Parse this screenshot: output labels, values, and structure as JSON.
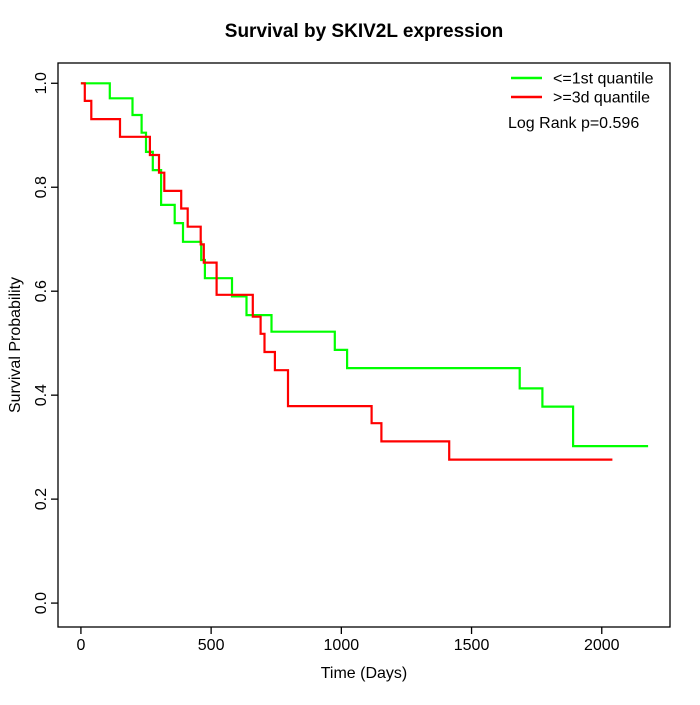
{
  "chart_data": {
    "type": "line",
    "subtype": "kaplan-meier-step",
    "title": "Survival by SKIV2L expression",
    "xlabel": "Time (Days)",
    "ylabel": "Survival Probability",
    "x_ticks": [
      0,
      500,
      1000,
      1500,
      2000
    ],
    "y_ticks": [
      "0.0",
      "0.2",
      "0.4",
      "0.6",
      "0.8",
      "1.0"
    ],
    "xlim": [
      -88,
      2262
    ],
    "ylim": [
      -0.046,
      1.039
    ],
    "grid": false,
    "legend_position": "top-right",
    "annotation": "Log Rank p=0.596",
    "series": [
      {
        "name": "le-1st-quantile",
        "label": "<=1st quantile",
        "color": "#00ff00",
        "end_time": 2178,
        "steps": [
          [
            0,
            1.0
          ],
          [
            111,
            0.971
          ],
          [
            198,
            0.939
          ],
          [
            233,
            0.905
          ],
          [
            250,
            0.868
          ],
          [
            276,
            0.833
          ],
          [
            308,
            0.766
          ],
          [
            360,
            0.731
          ],
          [
            392,
            0.695
          ],
          [
            462,
            0.66
          ],
          [
            476,
            0.625
          ],
          [
            580,
            0.59
          ],
          [
            636,
            0.554
          ],
          [
            732,
            0.522
          ],
          [
            975,
            0.487
          ],
          [
            1022,
            0.452
          ],
          [
            1685,
            0.413
          ],
          [
            1772,
            0.378
          ],
          [
            1890,
            0.302
          ]
        ]
      },
      {
        "name": "ge-3d-quantile",
        "label": ">=3d quantile",
        "color": "#ff0000",
        "end_time": 2041,
        "steps": [
          [
            0,
            1.0
          ],
          [
            15,
            0.966
          ],
          [
            40,
            0.931
          ],
          [
            150,
            0.897
          ],
          [
            265,
            0.862
          ],
          [
            300,
            0.828
          ],
          [
            320,
            0.793
          ],
          [
            385,
            0.759
          ],
          [
            410,
            0.724
          ],
          [
            460,
            0.69
          ],
          [
            472,
            0.655
          ],
          [
            521,
            0.593
          ],
          [
            660,
            0.551
          ],
          [
            690,
            0.518
          ],
          [
            705,
            0.483
          ],
          [
            745,
            0.448
          ],
          [
            795,
            0.379
          ],
          [
            1116,
            0.346
          ],
          [
            1154,
            0.311
          ],
          [
            1414,
            0.276
          ]
        ]
      }
    ]
  }
}
